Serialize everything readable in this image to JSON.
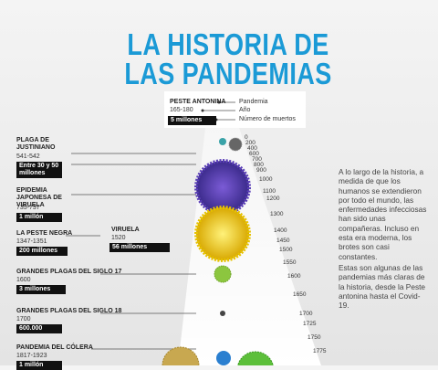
{
  "title": [
    "LA HISTORIA DE",
    "LAS PANDEMIAS"
  ],
  "legend": {
    "example": {
      "name": "PESTE ANTONINA",
      "years": "165-180",
      "deaths": "5 millones"
    },
    "labels": [
      "Pandemia",
      "Año",
      "Número de muertos"
    ]
  },
  "pandemics": [
    {
      "name": "PLAGA DE JUSTINIANO",
      "years": "541-542",
      "deaths": "Entre 30 y 50 millones"
    },
    {
      "name": "EPIDEMIA JAPONESA DE VIRUELA",
      "years": "735-737",
      "deaths": "1 millón"
    },
    {
      "name": "LA PESTE NEGRA",
      "years": "1347-1351",
      "deaths": "200 millones"
    },
    {
      "name": "VIRUELA",
      "years": "1520",
      "deaths": "56 millones"
    },
    {
      "name": "GRANDES PLAGAS DEL SIGLO 17",
      "years": "1600",
      "deaths": "3 millones"
    },
    {
      "name": "GRANDES PLAGAS DEL SIGLO 18",
      "years": "1700",
      "deaths": "600.000"
    },
    {
      "name": "PANDEMIA DEL CÓLERA",
      "years": "1817-1923",
      "deaths": "1 millón"
    }
  ],
  "timeline": [
    "0",
    "200",
    "400",
    "600",
    "700",
    "800",
    "900",
    "1000",
    "1100",
    "1200",
    "1300",
    "1400",
    "1450",
    "1500",
    "1550",
    "1600",
    "1650",
    "1700",
    "1725",
    "1750",
    "1775"
  ],
  "text": [
    "A lo largo de la historia, a medida de que los humanos se extendieron por todo el mundo, las enfermedades infecciosas han sido unas compañeras. Incluso en esta era moderna, los brotes son casi constantes.",
    "Estas son algunas de las pandemias más claras de la historia, desde la Peste antonina hasta el Covid-19."
  ]
}
